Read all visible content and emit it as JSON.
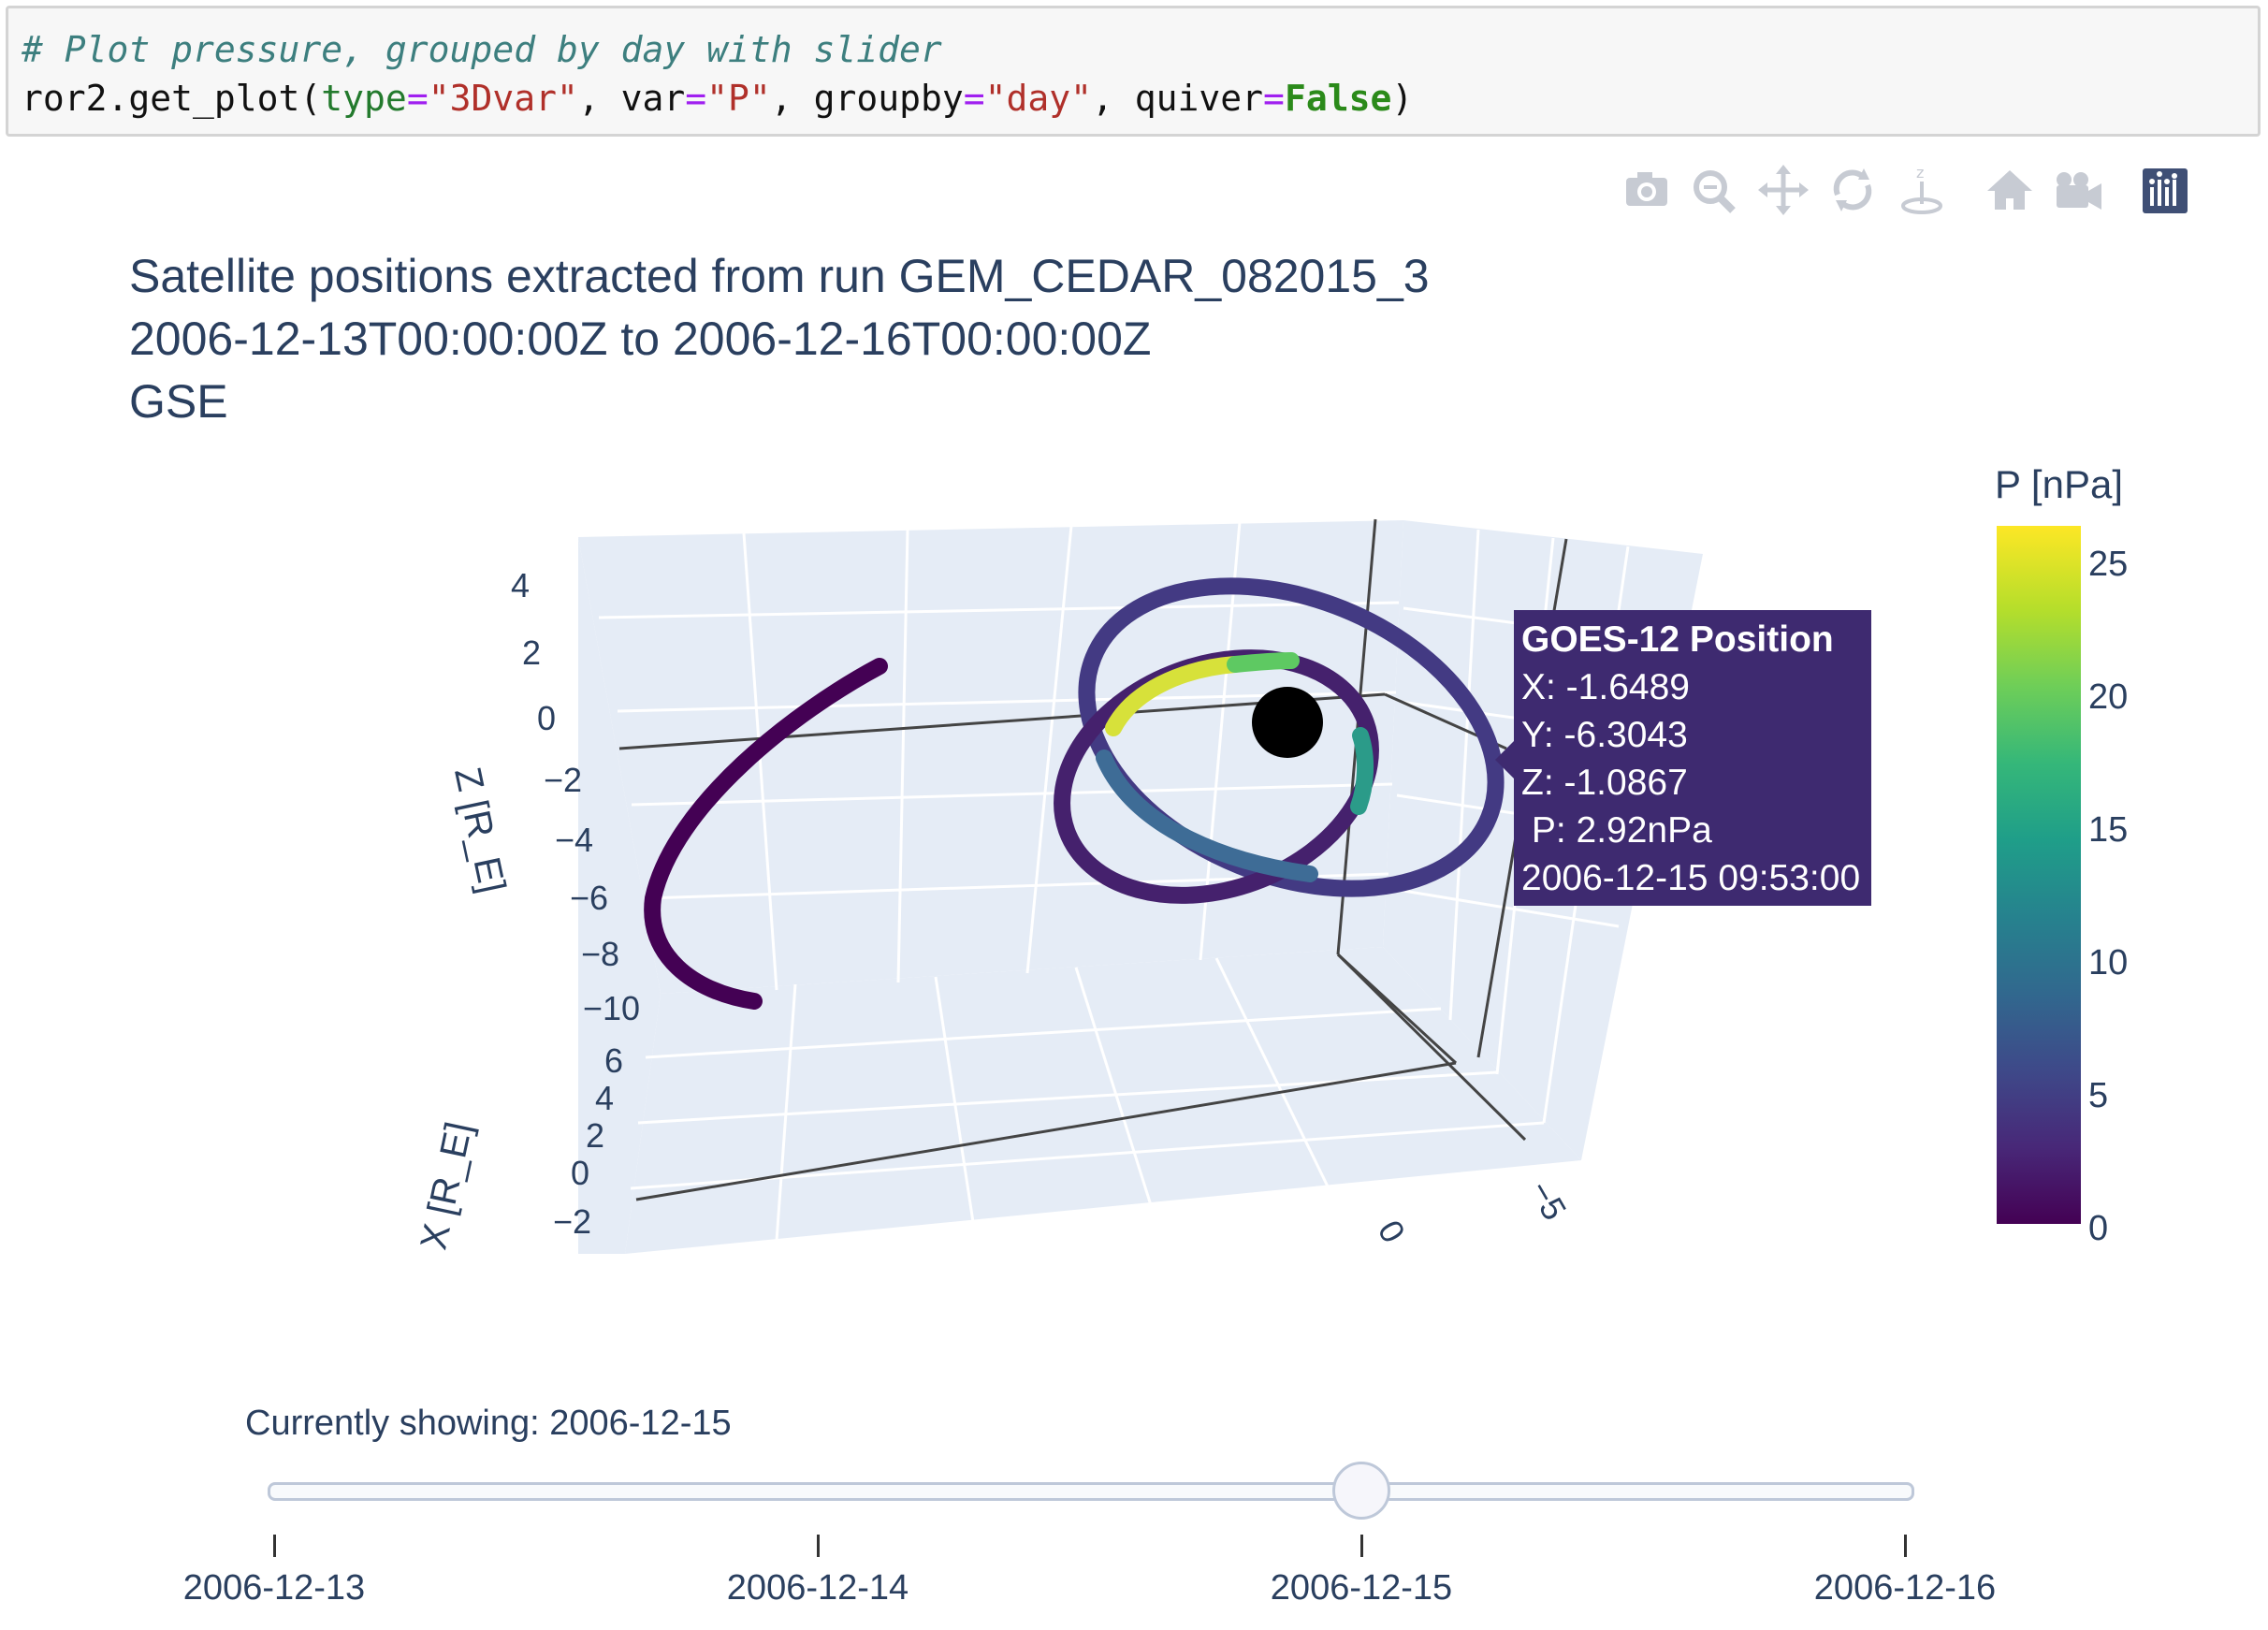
{
  "code": {
    "comment": "# Plot pressure, grouped by day with slider",
    "fn": "ror2.get_plot(",
    "arg1_key": "type",
    "arg1_val": "\"3Dvar\"",
    "arg2_key": "var",
    "arg2_val": "\"P\"",
    "arg3_key": "groupby",
    "arg3_val": "\"day\"",
    "arg4_key": "quiver",
    "arg4_val": "False",
    "sep": ", ",
    "eq": "=",
    "close": ")"
  },
  "modebar": {
    "buttons": [
      "camera-icon",
      "zoom-icon",
      "pan-icon",
      "orbit-rotation-icon",
      "turntable-rotation-icon",
      "reset-camera-icon",
      "reset-view-icon",
      "plotly-logo-icon"
    ]
  },
  "title": {
    "line1": "Satellite positions extracted from run GEM_CEDAR_082015_3",
    "line2": "2006-12-13T00:00:00Z to 2006-12-16T00:00:00Z",
    "line3": "GSE"
  },
  "chart_data": {
    "type": "scatter3d",
    "axes": {
      "z": {
        "label": "Z [R_E]",
        "ticks": [
          "4",
          "2",
          "0",
          "−2",
          "−4",
          "−6",
          "−8",
          "−10"
        ]
      },
      "x": {
        "label": "X [R_E]",
        "ticks": [
          "6",
          "4",
          "2",
          "0",
          "−2"
        ]
      },
      "y": {
        "label": "",
        "ticks": [
          "0",
          "−5"
        ]
      }
    },
    "colorbar": {
      "title": "P [nPa]",
      "range": [
        0,
        26
      ],
      "ticks": [
        "25",
        "20",
        "15",
        "10",
        "5",
        "0"
      ],
      "colorscale": "viridis"
    },
    "hover": {
      "title": "GOES-12 Position",
      "x": "X: -1.6489",
      "y": "Y: -6.3043",
      "z": "Z: -1.0867",
      "p": " P: 2.92nPa",
      "time": "2006-12-15 09:53:00"
    }
  },
  "slider": {
    "label": "Currently showing: 2006-12-15",
    "ticks": [
      "2006-12-13",
      "2006-12-14",
      "2006-12-15",
      "2006-12-16"
    ],
    "active_index": 2
  },
  "colors": {
    "scene_bg": "#e5ecf6",
    "grid": "#ffffff",
    "axis_line": "#444444",
    "tooltip_bg": "#3e2a70",
    "earth": "#000000"
  }
}
